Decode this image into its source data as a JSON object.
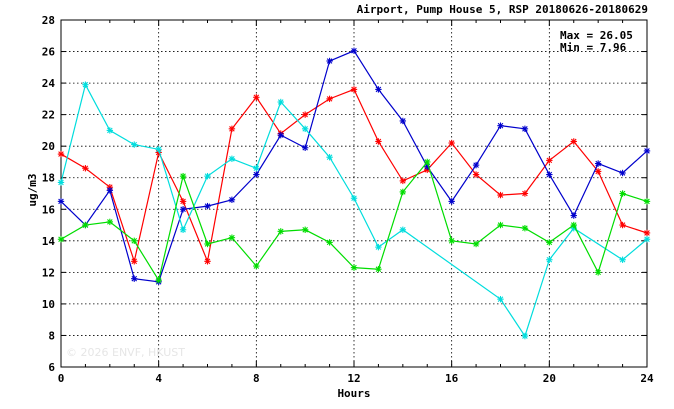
{
  "chart_data": {
    "type": "line",
    "title": "Airport, Pump House 5, RSP 20180626-20180629",
    "xlabel": "Hours",
    "ylabel": "ug/m3",
    "xlim": [
      0,
      24
    ],
    "ylim": [
      6,
      28
    ],
    "xticks": [
      0,
      4,
      8,
      12,
      16,
      20,
      24
    ],
    "yticks": [
      6,
      8,
      10,
      12,
      14,
      16,
      18,
      20,
      22,
      24,
      26,
      28
    ],
    "grid": true,
    "stats": {
      "max_text": "Max = 26.05",
      "min_text": "Min =  7.96"
    },
    "watermark": "© 2026  ENVF, HKUST",
    "x": [
      0,
      1,
      2,
      3,
      4,
      5,
      6,
      7,
      8,
      9,
      10,
      11,
      12,
      13,
      14,
      15,
      16,
      17,
      18,
      19,
      20,
      21,
      22,
      23,
      24
    ],
    "series": [
      {
        "color": "#ff0000",
        "values": [
          19.5,
          18.6,
          17.4,
          12.7,
          19.6,
          16.5,
          12.7,
          21.1,
          23.1,
          20.8,
          22.0,
          23.0,
          23.6,
          20.3,
          17.8,
          18.5,
          20.2,
          18.2,
          16.9,
          17.0,
          19.1,
          20.3,
          18.4,
          15.0,
          14.5
        ]
      },
      {
        "color": "#0000cc",
        "values": [
          16.5,
          15.0,
          17.2,
          11.6,
          11.4,
          16.0,
          16.2,
          16.6,
          18.2,
          20.7,
          19.9,
          25.4,
          26.05,
          23.6,
          21.6,
          18.7,
          16.5,
          18.8,
          21.3,
          21.1,
          18.2,
          15.6,
          18.9,
          18.3,
          19.7
        ]
      },
      {
        "color": "#00dddd",
        "values": [
          17.7,
          23.9,
          21.0,
          20.1,
          19.8,
          14.7,
          18.1,
          19.2,
          18.6,
          22.8,
          21.1,
          19.3,
          16.7,
          13.6,
          14.7,
          null,
          null,
          null,
          10.3,
          7.96,
          12.8,
          14.8,
          null,
          12.8,
          14.1
        ]
      },
      {
        "color": "#00dd00",
        "values": [
          14.1,
          15.0,
          15.2,
          14.0,
          11.5,
          18.1,
          13.8,
          14.2,
          12.4,
          14.6,
          14.7,
          13.9,
          12.3,
          12.2,
          17.1,
          19.0,
          14.0,
          13.8,
          15.0,
          14.8,
          13.9,
          15.0,
          12.0,
          17.0,
          16.5
        ]
      }
    ]
  }
}
